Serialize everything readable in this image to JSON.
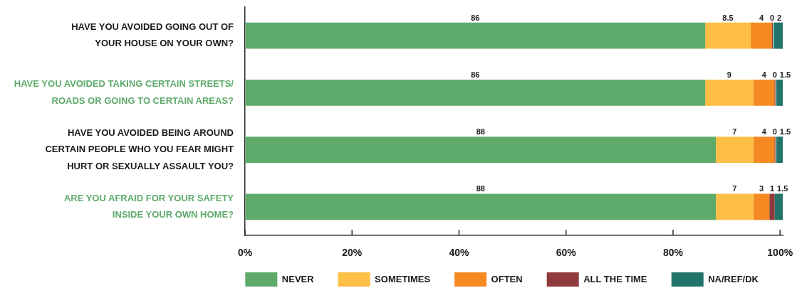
{
  "chart_data": {
    "type": "bar",
    "orientation": "horizontal",
    "stacked": true,
    "categories": [
      "HAVE YOU AVOIDED GOING OUT OF\nYOUR HOUSE ON YOUR OWN?",
      "HAVE YOU AVOIDED TAKING CERTAIN STREETS/\nROADS OR GOING TO CERTAIN AREAS?",
      "HAVE YOU AVOIDED BEING AROUND\nCERTAIN PEOPLE WHO YOU FEAR MIGHT\nHURT OR SEXUALLY ASSAULT YOU?",
      "ARE YOU AFRAID FOR YOUR SAFETY\nINSIDE YOUR OWN HOME?"
    ],
    "series": [
      {
        "name": "NEVER",
        "color": "#5eaa6b",
        "values": [
          86,
          86,
          88,
          88
        ]
      },
      {
        "name": "SOMETIMES",
        "color": "#fdbf45",
        "values": [
          8.5,
          9,
          7,
          7
        ]
      },
      {
        "name": "OFTEN",
        "color": "#f58a23",
        "values": [
          4,
          4,
          4,
          3
        ]
      },
      {
        "name": "ALL THE TIME",
        "color": "#8f3a3d",
        "values": [
          0,
          0,
          0,
          1
        ]
      },
      {
        "name": "NA/REF/DK",
        "color": "#23746a",
        "values": [
          2,
          1.5,
          1.5,
          1.5
        ]
      }
    ],
    "xlim": [
      0,
      100.5
    ],
    "xticks": [
      {
        "value": 0,
        "label": "0%"
      },
      {
        "value": 20,
        "label": "20%"
      },
      {
        "value": 40,
        "label": "40%"
      },
      {
        "value": 60,
        "label": "60%"
      },
      {
        "value": 80,
        "label": "80%"
      },
      {
        "value": 100,
        "label": "100%"
      }
    ],
    "data_labels": true,
    "legend": "bottom"
  }
}
